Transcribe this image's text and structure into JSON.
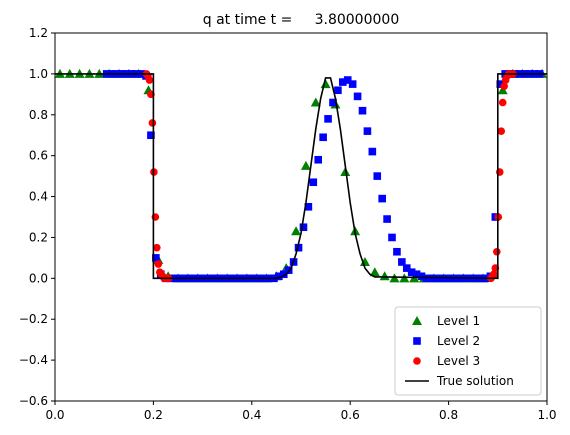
{
  "chart_data": {
    "type": "line",
    "title": "q at time t =     3.80000000",
    "xlabel": "",
    "ylabel": "",
    "xlim": [
      0.0,
      1.0
    ],
    "ylim": [
      -0.6,
      1.2
    ],
    "xticks": [
      "0.0",
      "0.2",
      "0.4",
      "0.6",
      "0.8",
      "1.0"
    ],
    "yticks": [
      "−0.6",
      "−0.4",
      "−0.2",
      "0.0",
      "0.2",
      "0.4",
      "0.6",
      "0.8",
      "1.0",
      "1.2"
    ],
    "grid": false,
    "legend_placement": "lower-right",
    "series": [
      {
        "name": "Level 1",
        "marker": "triangle",
        "color": "#008000",
        "x": [
          0.01,
          0.03,
          0.05,
          0.07,
          0.09,
          0.11,
          0.13,
          0.15,
          0.17,
          0.19,
          0.21,
          0.23,
          0.25,
          0.27,
          0.29,
          0.31,
          0.33,
          0.35,
          0.37,
          0.39,
          0.41,
          0.43,
          0.45,
          0.47,
          0.49,
          0.51,
          0.53,
          0.55,
          0.57,
          0.59,
          0.61,
          0.63,
          0.65,
          0.67,
          0.69,
          0.71,
          0.73,
          0.75,
          0.77,
          0.79,
          0.81,
          0.83,
          0.85,
          0.87,
          0.89,
          0.91,
          0.93,
          0.95,
          0.97,
          0.99
        ],
        "y": [
          1.0,
          1.0,
          1.0,
          1.0,
          1.0,
          1.0,
          1.0,
          1.0,
          1.0,
          0.92,
          0.09,
          0.01,
          0.0,
          0.0,
          0.0,
          0.0,
          0.0,
          0.0,
          0.0,
          0.0,
          0.0,
          0.0,
          0.01,
          0.05,
          0.23,
          0.55,
          0.86,
          0.95,
          0.85,
          0.52,
          0.23,
          0.08,
          0.03,
          0.01,
          0.0,
          0.0,
          0.0,
          0.0,
          0.0,
          0.0,
          0.0,
          0.0,
          0.0,
          0.0,
          0.02,
          0.92,
          1.0,
          1.0,
          1.0,
          1.0
        ]
      },
      {
        "name": "Level 2",
        "marker": "square",
        "color": "#0000ff",
        "x": [
          0.105,
          0.115,
          0.125,
          0.135,
          0.145,
          0.155,
          0.165,
          0.175,
          0.185,
          0.195,
          0.205,
          0.215,
          0.225,
          0.235,
          0.245,
          0.255,
          0.265,
          0.275,
          0.285,
          0.295,
          0.305,
          0.315,
          0.325,
          0.335,
          0.345,
          0.355,
          0.365,
          0.375,
          0.385,
          0.395,
          0.405,
          0.415,
          0.425,
          0.435,
          0.445,
          0.455,
          0.465,
          0.475,
          0.485,
          0.495,
          0.505,
          0.515,
          0.525,
          0.535,
          0.545,
          0.555,
          0.565,
          0.575,
          0.585,
          0.595,
          0.605,
          0.615,
          0.625,
          0.635,
          0.645,
          0.655,
          0.665,
          0.675,
          0.685,
          0.695,
          0.705,
          0.715,
          0.725,
          0.735,
          0.745,
          0.755,
          0.765,
          0.775,
          0.785,
          0.795,
          0.805,
          0.815,
          0.825,
          0.835,
          0.845,
          0.855,
          0.865,
          0.875,
          0.885,
          0.895,
          0.905,
          0.915,
          0.925,
          0.935,
          0.945,
          0.955,
          0.965,
          0.975,
          0.985
        ],
        "y": [
          1.0,
          1.0,
          1.0,
          1.0,
          1.0,
          1.0,
          1.0,
          1.0,
          0.99,
          0.7,
          0.1,
          0.02,
          0.0,
          0.0,
          0.0,
          0.0,
          0.0,
          0.0,
          0.0,
          0.0,
          0.0,
          0.0,
          0.0,
          0.0,
          0.0,
          0.0,
          0.0,
          0.0,
          0.0,
          0.0,
          0.0,
          0.0,
          0.0,
          0.0,
          0.0,
          0.01,
          0.02,
          0.04,
          0.08,
          0.15,
          0.25,
          0.35,
          0.47,
          0.58,
          0.69,
          0.78,
          0.86,
          0.92,
          0.96,
          0.97,
          0.95,
          0.89,
          0.82,
          0.72,
          0.62,
          0.5,
          0.39,
          0.29,
          0.2,
          0.13,
          0.08,
          0.05,
          0.03,
          0.02,
          0.01,
          0.0,
          0.0,
          0.0,
          0.0,
          0.0,
          0.0,
          0.0,
          0.0,
          0.0,
          0.0,
          0.0,
          0.0,
          0.0,
          0.01,
          0.3,
          0.95,
          1.0,
          1.0,
          1.0,
          1.0,
          1.0,
          1.0,
          1.0,
          1.0
        ]
      },
      {
        "name": "Level 3",
        "marker": "circle",
        "color": "#ff0000",
        "x": [
          0.186,
          0.189,
          0.192,
          0.195,
          0.198,
          0.201,
          0.204,
          0.207,
          0.21,
          0.213,
          0.216,
          0.219,
          0.222,
          0.225,
          0.228,
          0.231,
          0.886,
          0.889,
          0.892,
          0.895,
          0.898,
          0.901,
          0.904,
          0.907,
          0.91,
          0.913,
          0.916,
          0.919,
          0.922,
          0.925,
          0.928,
          0.931
        ],
        "y": [
          1.0,
          0.99,
          0.97,
          0.9,
          0.76,
          0.52,
          0.3,
          0.15,
          0.07,
          0.03,
          0.02,
          0.01,
          0.0,
          0.0,
          0.0,
          0.0,
          0.0,
          0.01,
          0.02,
          0.05,
          0.13,
          0.3,
          0.52,
          0.72,
          0.86,
          0.94,
          0.97,
          0.99,
          1.0,
          1.0,
          1.0,
          1.0
        ]
      },
      {
        "name": "True solution",
        "marker": "line",
        "color": "#000000",
        "x": [
          0.0,
          0.2,
          0.2,
          0.45,
          0.46,
          0.47,
          0.48,
          0.49,
          0.5,
          0.51,
          0.52,
          0.53,
          0.54,
          0.55,
          0.56,
          0.57,
          0.58,
          0.59,
          0.6,
          0.61,
          0.62,
          0.63,
          0.64,
          0.65,
          0.9,
          0.9,
          1.0
        ],
        "y": [
          1.0,
          1.0,
          0.0,
          0.0,
          0.007,
          0.02,
          0.05,
          0.12,
          0.22,
          0.37,
          0.55,
          0.73,
          0.88,
          0.98,
          0.98,
          0.88,
          0.73,
          0.55,
          0.37,
          0.22,
          0.12,
          0.05,
          0.02,
          0.007,
          0.0,
          1.0,
          1.0
        ]
      }
    ]
  }
}
